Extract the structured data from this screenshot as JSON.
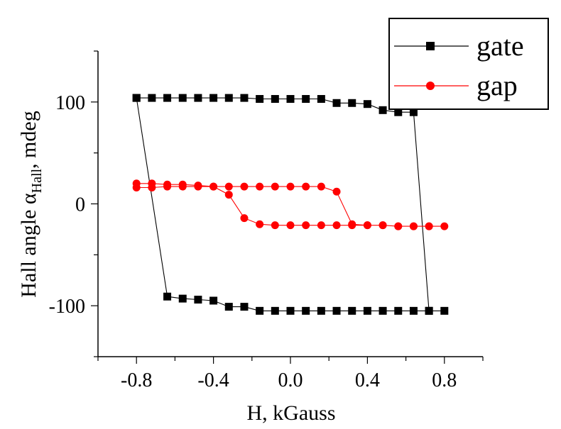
{
  "chart_data": {
    "type": "scatter",
    "title": "",
    "xlabel": "H, kGauss",
    "ylabel_main": "Hall angle α",
    "ylabel_sub": "Hall",
    "ylabel_tail": ", mdeg",
    "xlim": [
      -1.0,
      1.0
    ],
    "ylim": [
      -150,
      150
    ],
    "x_ticks": [
      -0.8,
      -0.4,
      0.0,
      0.4,
      0.8
    ],
    "x_tick_labels": [
      "-0.8",
      "-0.4",
      "0.0",
      "0.4",
      "0.8"
    ],
    "y_ticks": [
      -100,
      0,
      100
    ],
    "y_tick_labels": [
      "-100",
      "0",
      "100"
    ],
    "grid": false,
    "legend_position": "top-right",
    "series": [
      {
        "name": "gate",
        "color": "#000000",
        "marker": "square",
        "x": [
          -0.8,
          -0.72,
          -0.64,
          -0.56,
          -0.48,
          -0.4,
          -0.32,
          -0.24,
          -0.16,
          -0.08,
          0.0,
          0.08,
          0.16,
          0.24,
          0.32,
          0.4,
          0.48,
          0.56,
          0.64,
          0.72,
          0.8,
          0.72,
          0.64,
          0.56,
          0.48,
          0.4,
          0.32,
          0.24,
          0.16,
          0.08,
          0.0,
          -0.08,
          -0.16,
          -0.24,
          -0.32,
          -0.4,
          -0.48,
          -0.56,
          -0.64,
          -0.8
        ],
        "y": [
          104,
          104,
          104,
          104,
          104,
          104,
          104,
          104,
          103,
          103,
          103,
          103,
          103,
          99,
          99,
          98,
          92,
          90,
          90,
          -105,
          -105,
          -105,
          -105,
          -105,
          -105,
          -105,
          -105,
          -105,
          -105,
          -105,
          -105,
          -105,
          -105,
          -101,
          -101,
          -95,
          -94,
          -93,
          -91,
          104
        ]
      },
      {
        "name": "gap",
        "color": "#ff0000",
        "marker": "circle",
        "x": [
          -0.8,
          -0.72,
          -0.64,
          -0.56,
          -0.48,
          -0.4,
          -0.32,
          -0.24,
          -0.16,
          -0.08,
          0.0,
          0.08,
          0.16,
          0.24,
          0.32,
          0.4,
          0.48,
          0.56,
          0.64,
          0.72,
          0.8,
          0.72,
          0.64,
          0.56,
          0.48,
          0.4,
          0.32,
          0.24,
          0.16,
          0.08,
          0.0,
          -0.08,
          -0.16,
          -0.24,
          -0.32,
          -0.4,
          -0.48,
          -0.56,
          -0.64,
          -0.72,
          -0.8
        ],
        "y": [
          20,
          20,
          19,
          19,
          18,
          17,
          9,
          -14,
          -20,
          -21,
          -21,
          -21,
          -21,
          -21,
          -21,
          -21,
          -21,
          -22,
          -22,
          -22,
          -22,
          -22,
          -22,
          -22,
          -21,
          -21,
          -20,
          12,
          17,
          17,
          17,
          17,
          17,
          17,
          17,
          17,
          17,
          17,
          17,
          16,
          16
        ]
      }
    ]
  }
}
